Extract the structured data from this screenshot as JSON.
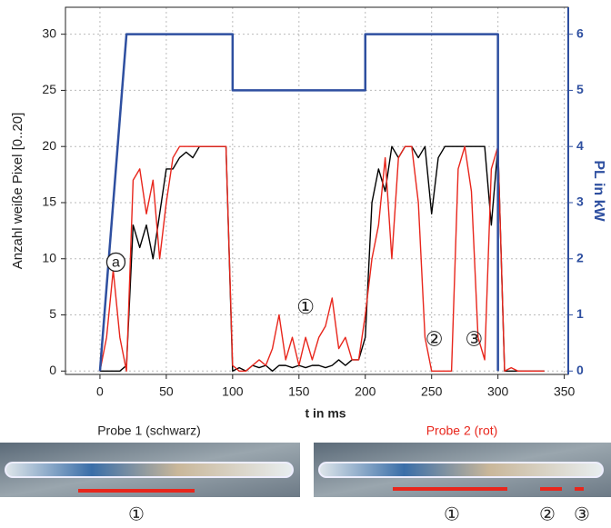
{
  "chart_data": {
    "type": "line",
    "xlabel": "t in ms",
    "ylabel": "Anzahl weiße Pixel [0..20]",
    "y2label": "PL in kW",
    "xlim": [
      -26,
      353
    ],
    "ylim": [
      -0.3,
      32.4
    ],
    "y2lim": [
      -0.06,
      6.48
    ],
    "xticks": [
      0,
      50,
      100,
      150,
      200,
      250,
      300,
      350
    ],
    "yticks": [
      0,
      5,
      10,
      15,
      20,
      25,
      30
    ],
    "y2ticks": [
      0,
      1,
      2,
      3,
      4,
      5,
      6
    ],
    "grid": true,
    "x": [
      0,
      5,
      10,
      15,
      20,
      25,
      30,
      35,
      40,
      45,
      50,
      55,
      60,
      65,
      70,
      75,
      80,
      85,
      90,
      95,
      100,
      105,
      110,
      115,
      120,
      125,
      130,
      135,
      140,
      145,
      150,
      155,
      160,
      165,
      170,
      175,
      180,
      185,
      190,
      195,
      200,
      205,
      210,
      215,
      220,
      225,
      230,
      235,
      240,
      245,
      250,
      255,
      260,
      265,
      270,
      275,
      280,
      285,
      290,
      295,
      300,
      305,
      310,
      315,
      320,
      325,
      330,
      335
    ],
    "series": [
      {
        "color": "#000000",
        "values": [
          0,
          0,
          0,
          0,
          0.5,
          13,
          11,
          13,
          10,
          14,
          18,
          18,
          19,
          19.5,
          19,
          20,
          20,
          20,
          20,
          20,
          0,
          0.3,
          0,
          0.5,
          0.3,
          0.5,
          0,
          0.5,
          0.5,
          0.3,
          0.5,
          0.3,
          0.5,
          0.5,
          0.3,
          0.5,
          1,
          0.5,
          1,
          1,
          3,
          15,
          18,
          16,
          20,
          19,
          20,
          20,
          19,
          20,
          14,
          19,
          20,
          20,
          20,
          20,
          20,
          20,
          20,
          13,
          20,
          0,
          0,
          0,
          0,
          0,
          0,
          0
        ]
      },
      {
        "color": "#e8261c",
        "values": [
          0,
          3,
          9,
          3,
          0,
          17,
          18,
          14,
          17,
          10,
          15,
          19,
          20,
          20,
          20,
          20,
          20,
          20,
          20,
          20,
          0.5,
          0,
          0,
          0.5,
          1,
          0.5,
          2,
          5,
          1,
          3,
          0.5,
          3,
          1,
          3,
          4,
          6.5,
          2,
          3,
          1,
          1,
          5,
          10,
          13,
          19,
          10,
          19,
          20,
          20,
          15,
          3,
          0,
          0,
          0,
          0,
          18,
          20,
          16,
          3,
          1,
          18,
          20,
          0,
          0.3,
          0,
          0,
          0,
          0,
          0
        ]
      },
      {
        "color": "#2e4fa0",
        "axis": "y2",
        "x": [
          0,
          20,
          100,
          100,
          200,
          200,
          300,
          300
        ],
        "values": [
          0,
          6,
          6,
          5,
          5,
          6,
          6,
          0
        ]
      }
    ],
    "annotations": [
      "a",
      "①",
      "②",
      "③"
    ]
  },
  "samples": [
    {
      "title": "Probe 1 (schwarz)",
      "markers": [
        "①"
      ]
    },
    {
      "title": "Probe 2 (rot)",
      "markers": [
        "①",
        "②",
        "③"
      ]
    }
  ]
}
